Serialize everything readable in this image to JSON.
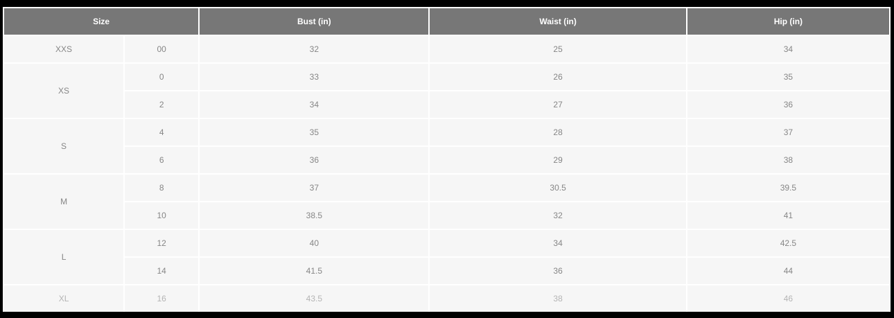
{
  "page": {
    "frame_color": "#000000",
    "background_color": "#ffffff"
  },
  "table": {
    "header_bg": "#777777",
    "header_text_color": "#ffffff",
    "cell_bg": "#f6f6f6",
    "cell_text_color": "#868686",
    "faded_text_color": "#b4b4b4",
    "columns": [
      {
        "key": "size",
        "label": "Size"
      },
      {
        "key": "bust",
        "label": "Bust (in)"
      },
      {
        "key": "waist",
        "label": "Waist (in)"
      },
      {
        "key": "hip",
        "label": "Hip (in)"
      }
    ],
    "groups": [
      {
        "size": "XXS",
        "faded": false,
        "rows": [
          {
            "num": "00",
            "bust": "32",
            "waist": "25",
            "hip": "34"
          }
        ]
      },
      {
        "size": "XS",
        "faded": false,
        "rows": [
          {
            "num": "0",
            "bust": "33",
            "waist": "26",
            "hip": "35"
          },
          {
            "num": "2",
            "bust": "34",
            "waist": "27",
            "hip": "36"
          }
        ]
      },
      {
        "size": "S",
        "faded": false,
        "rows": [
          {
            "num": "4",
            "bust": "35",
            "waist": "28",
            "hip": "37"
          },
          {
            "num": "6",
            "bust": "36",
            "waist": "29",
            "hip": "38"
          }
        ]
      },
      {
        "size": "M",
        "faded": false,
        "rows": [
          {
            "num": "8",
            "bust": "37",
            "waist": "30.5",
            "hip": "39.5"
          },
          {
            "num": "10",
            "bust": "38.5",
            "waist": "32",
            "hip": "41"
          }
        ]
      },
      {
        "size": "L",
        "faded": false,
        "rows": [
          {
            "num": "12",
            "bust": "40",
            "waist": "34",
            "hip": "42.5"
          },
          {
            "num": "14",
            "bust": "41.5",
            "waist": "36",
            "hip": "44"
          }
        ]
      },
      {
        "size": "XL",
        "faded": true,
        "rows": [
          {
            "num": "16",
            "bust": "43.5",
            "waist": "38",
            "hip": "46"
          }
        ]
      }
    ]
  }
}
